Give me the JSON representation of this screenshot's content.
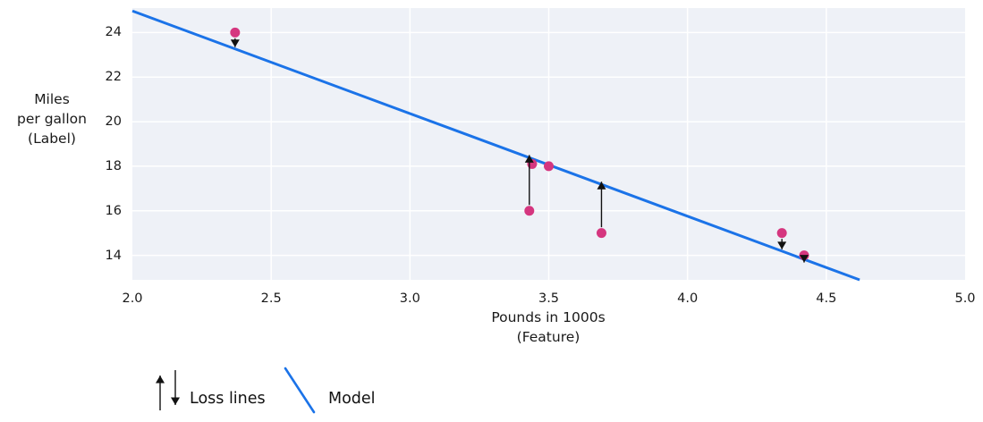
{
  "chart_data": {
    "type": "scatter",
    "title": "",
    "xlabel_lines": [
      "Pounds in 1000s",
      "(Feature)"
    ],
    "ylabel_lines": [
      "Miles",
      "per gallon",
      "(Label)"
    ],
    "xlim": [
      2.0,
      5.0
    ],
    "ylim": [
      12.9,
      25.1
    ],
    "x_ticks": [
      2.0,
      2.5,
      3.0,
      3.5,
      4.0,
      4.5,
      5.0
    ],
    "x_tick_labels": [
      "2.0",
      "2.5",
      "3.0",
      "3.5",
      "4.0",
      "4.5",
      "5.0"
    ],
    "y_ticks": [
      14,
      16,
      18,
      20,
      22,
      24
    ],
    "y_tick_labels": [
      "14",
      "16",
      "18",
      "20",
      "22",
      "24"
    ],
    "grid": true,
    "points": [
      {
        "x": 2.37,
        "y": 24.0,
        "loss": "down"
      },
      {
        "x": 3.43,
        "y": 16.0,
        "loss": "up"
      },
      {
        "x": 3.44,
        "y": 18.1,
        "loss": "none"
      },
      {
        "x": 3.5,
        "y": 18.0,
        "loss": "none"
      },
      {
        "x": 3.69,
        "y": 15.0,
        "loss": "up"
      },
      {
        "x": 4.34,
        "y": 15.0,
        "loss": "down"
      },
      {
        "x": 4.42,
        "y": 14.0,
        "loss": "down"
      }
    ],
    "model_line": {
      "x1": 2.0,
      "y1": 24.97,
      "x2": 4.62,
      "y2": 12.9
    },
    "legend": [
      {
        "label": "Loss lines",
        "glyph": "loss-arrows"
      },
      {
        "label": "Model",
        "glyph": "model-line"
      }
    ],
    "colors": {
      "model_line": "#1b73e8",
      "point": "#d5367f",
      "plot_background": "#eef1f7",
      "gridline": "#ffffff",
      "loss_arrow": "#111111",
      "text": "#1a1a1a"
    }
  }
}
